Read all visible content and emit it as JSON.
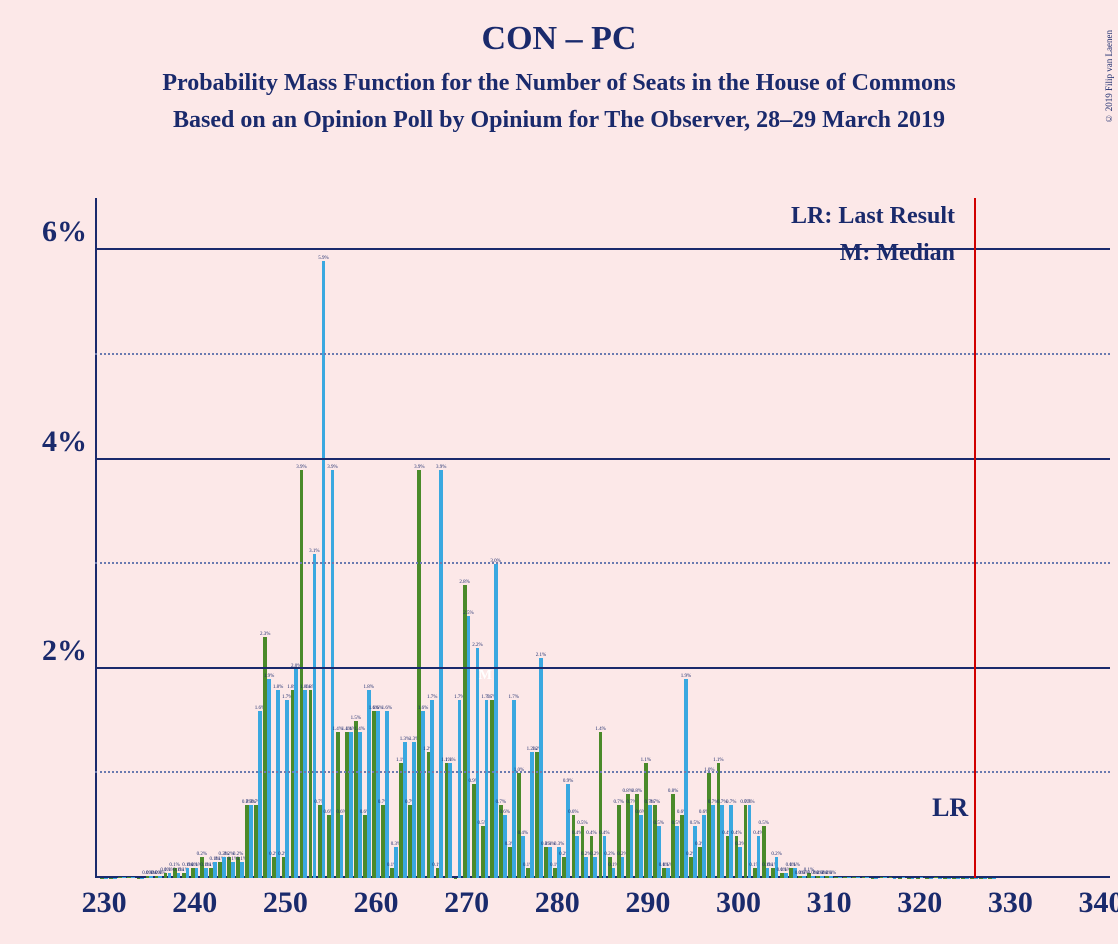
{
  "title": "CON – PC",
  "subtitle1": "Probability Mass Function for the Number of Seats in the House of Commons",
  "subtitle2": "Based on an Opinion Poll by Opinium for The Observer, 28–29 March 2019",
  "copyright": "© 2019 Filip van Laenen",
  "legend": {
    "lr": "LR: Last Result",
    "m": "M: Median"
  },
  "lr_label": "LR",
  "m_label": "M",
  "chart": {
    "type": "bar",
    "xlim": [
      229,
      341
    ],
    "ylim": [
      0,
      6.5
    ],
    "x_ticks": [
      230,
      240,
      250,
      260,
      270,
      280,
      290,
      300,
      310,
      320,
      330,
      340
    ],
    "y_ticks_solid": [
      2,
      4,
      6
    ],
    "y_ticks_dotted": [
      1,
      3,
      5
    ],
    "y_tick_labels": {
      "2": "2%",
      "4": "4%",
      "6": "6%"
    },
    "lr_position": 326,
    "median_position": 272,
    "series_colors": {
      "green": "#4a8a2a",
      "blue": "#3aa8e0"
    },
    "background_color": "#fce8e8",
    "gridline_solid_color": "#1a2a6c",
    "gridline_dotted_color": "#6a7ab0",
    "marker_color": "#d00000",
    "text_color": "#1a2a6c",
    "title_fontsize": 34,
    "subtitle_fontsize": 24,
    "axis_label_fontsize": 30,
    "legend_fontsize": 24,
    "bar_width_ratio": 0.42,
    "data": [
      {
        "x": 230,
        "green": 0.0,
        "blue": 0.0
      },
      {
        "x": 231,
        "green": 0.0,
        "blue": 0.0
      },
      {
        "x": 232,
        "green": 0.01,
        "blue": 0.01
      },
      {
        "x": 233,
        "green": 0.01,
        "blue": 0.01
      },
      {
        "x": 234,
        "green": 0.0,
        "blue": 0.0
      },
      {
        "x": 235,
        "green": 0.02,
        "blue": 0.02
      },
      {
        "x": 236,
        "green": 0.02,
        "blue": 0.02
      },
      {
        "x": 237,
        "green": 0.05,
        "blue": 0.05
      },
      {
        "x": 238,
        "green": 0.1,
        "blue": 0.05
      },
      {
        "x": 239,
        "green": 0.05,
        "blue": 0.1
      },
      {
        "x": 240,
        "green": 0.1,
        "blue": 0.1
      },
      {
        "x": 241,
        "green": 0.2,
        "blue": 0.1
      },
      {
        "x": 242,
        "green": 0.1,
        "blue": 0.15
      },
      {
        "x": 243,
        "green": 0.15,
        "blue": 0.2
      },
      {
        "x": 244,
        "green": 0.2,
        "blue": 0.15
      },
      {
        "x": 245,
        "green": 0.2,
        "blue": 0.15
      },
      {
        "x": 246,
        "green": 0.7,
        "blue": 0.7
      },
      {
        "x": 247,
        "green": 0.7,
        "blue": 1.6
      },
      {
        "x": 248,
        "green": 2.3,
        "blue": 1.9
      },
      {
        "x": 249,
        "green": 0.2,
        "blue": 1.8
      },
      {
        "x": 250,
        "green": 0.2,
        "blue": 1.7
      },
      {
        "x": 251,
        "green": 1.8,
        "blue": 2.0
      },
      {
        "x": 252,
        "green": 3.9,
        "blue": 1.8
      },
      {
        "x": 253,
        "green": 1.8,
        "blue": 3.1
      },
      {
        "x": 254,
        "green": 0.7,
        "blue": 5.9
      },
      {
        "x": 255,
        "green": 0.6,
        "blue": 3.9
      },
      {
        "x": 256,
        "green": 1.4,
        "blue": 0.6
      },
      {
        "x": 257,
        "green": 1.4,
        "blue": 1.4
      },
      {
        "x": 258,
        "green": 1.5,
        "blue": 1.4
      },
      {
        "x": 259,
        "green": 0.6,
        "blue": 1.8
      },
      {
        "x": 260,
        "green": 1.6,
        "blue": 1.6
      },
      {
        "x": 261,
        "green": 0.7,
        "blue": 1.6
      },
      {
        "x": 262,
        "green": 0.1,
        "blue": 0.3
      },
      {
        "x": 263,
        "green": 1.1,
        "blue": 1.3
      },
      {
        "x": 264,
        "green": 0.7,
        "blue": 1.3
      },
      {
        "x": 265,
        "green": 3.9,
        "blue": 1.6
      },
      {
        "x": 266,
        "green": 1.2,
        "blue": 1.7
      },
      {
        "x": 267,
        "green": 0.1,
        "blue": 3.9
      },
      {
        "x": 268,
        "green": 1.1,
        "blue": 1.1
      },
      {
        "x": 269,
        "green": 0.0,
        "blue": 1.7
      },
      {
        "x": 270,
        "green": 2.8,
        "blue": 2.5
      },
      {
        "x": 271,
        "green": 0.9,
        "blue": 2.2
      },
      {
        "x": 272,
        "green": 0.5,
        "blue": 1.7
      },
      {
        "x": 273,
        "green": 1.7,
        "blue": 3.0
      },
      {
        "x": 274,
        "green": 0.7,
        "blue": 0.6
      },
      {
        "x": 275,
        "green": 0.3,
        "blue": 1.7
      },
      {
        "x": 276,
        "green": 1.0,
        "blue": 0.4
      },
      {
        "x": 277,
        "green": 0.1,
        "blue": 1.2
      },
      {
        "x": 278,
        "green": 1.2,
        "blue": 2.1
      },
      {
        "x": 279,
        "green": 0.3,
        "blue": 0.3
      },
      {
        "x": 280,
        "green": 0.1,
        "blue": 0.3
      },
      {
        "x": 281,
        "green": 0.2,
        "blue": 0.9
      },
      {
        "x": 282,
        "green": 0.6,
        "blue": 0.4
      },
      {
        "x": 283,
        "green": 0.5,
        "blue": 0.2
      },
      {
        "x": 284,
        "green": 0.4,
        "blue": 0.2
      },
      {
        "x": 285,
        "green": 1.4,
        "blue": 0.4
      },
      {
        "x": 286,
        "green": 0.2,
        "blue": 0.1
      },
      {
        "x": 287,
        "green": 0.7,
        "blue": 0.2
      },
      {
        "x": 288,
        "green": 0.8,
        "blue": 0.7
      },
      {
        "x": 289,
        "green": 0.8,
        "blue": 0.6
      },
      {
        "x": 290,
        "green": 1.1,
        "blue": 0.7
      },
      {
        "x": 291,
        "green": 0.7,
        "blue": 0.5
      },
      {
        "x": 292,
        "green": 0.1,
        "blue": 0.1
      },
      {
        "x": 293,
        "green": 0.8,
        "blue": 0.5
      },
      {
        "x": 294,
        "green": 0.6,
        "blue": 1.9
      },
      {
        "x": 295,
        "green": 0.2,
        "blue": 0.5
      },
      {
        "x": 296,
        "green": 0.3,
        "blue": 0.6
      },
      {
        "x": 297,
        "green": 1.0,
        "blue": 0.7
      },
      {
        "x": 298,
        "green": 1.1,
        "blue": 0.7
      },
      {
        "x": 299,
        "green": 0.4,
        "blue": 0.7
      },
      {
        "x": 300,
        "green": 0.4,
        "blue": 0.3
      },
      {
        "x": 301,
        "green": 0.7,
        "blue": 0.7
      },
      {
        "x": 302,
        "green": 0.1,
        "blue": 0.4
      },
      {
        "x": 303,
        "green": 0.5,
        "blue": 0.1
      },
      {
        "x": 304,
        "green": 0.1,
        "blue": 0.2
      },
      {
        "x": 305,
        "green": 0.05,
        "blue": 0.05
      },
      {
        "x": 306,
        "green": 0.1,
        "blue": 0.1
      },
      {
        "x": 307,
        "green": 0.02,
        "blue": 0.02
      },
      {
        "x": 308,
        "green": 0.05,
        "blue": 0.02
      },
      {
        "x": 309,
        "green": 0.02,
        "blue": 0.02
      },
      {
        "x": 310,
        "green": 0.02,
        "blue": 0.02
      },
      {
        "x": 311,
        "green": 0.01,
        "blue": 0.01
      },
      {
        "x": 312,
        "green": 0.01,
        "blue": 0.01
      },
      {
        "x": 313,
        "green": 0.01,
        "blue": 0.01
      },
      {
        "x": 314,
        "green": 0.01,
        "blue": 0.01
      },
      {
        "x": 315,
        "green": 0.0,
        "blue": 0.0
      },
      {
        "x": 316,
        "green": 0.01,
        "blue": 0.01
      },
      {
        "x": 317,
        "green": 0.01,
        "blue": 0.0
      },
      {
        "x": 318,
        "green": 0.0,
        "blue": 0.01
      },
      {
        "x": 319,
        "green": 0.0,
        "blue": 0.0
      },
      {
        "x": 320,
        "green": 0.0,
        "blue": 0.01
      },
      {
        "x": 321,
        "green": 0.0,
        "blue": 0.0
      },
      {
        "x": 322,
        "green": 0.01,
        "blue": 0.0
      },
      {
        "x": 323,
        "green": 0.0,
        "blue": 0.0
      },
      {
        "x": 324,
        "green": 0.0,
        "blue": 0.0
      },
      {
        "x": 325,
        "green": 0.0,
        "blue": 0.0
      },
      {
        "x": 326,
        "green": 0.0,
        "blue": 0.0
      },
      {
        "x": 327,
        "green": 0.0,
        "blue": 0.0
      },
      {
        "x": 328,
        "green": 0.0,
        "blue": 0.0
      }
    ]
  }
}
